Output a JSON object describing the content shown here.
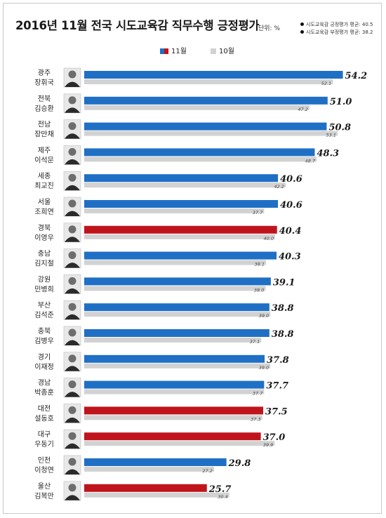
{
  "title": "2016년 11월 전국 시도교육감 직무수행 긍정평가",
  "unit": "단위: %",
  "averages": [
    "시도교육감 긍정평가 평균: 40.5",
    "시도교육감 부정평가 평균: 38.2"
  ],
  "legend": {
    "nov": "11월",
    "oct": "10월"
  },
  "colors": {
    "nov_blue": "#1f6fc5",
    "nov_red": "#c0141c",
    "oct_gray": "#d2d2d2"
  },
  "chart_data": {
    "type": "bar",
    "orientation": "horizontal",
    "title": "2016년 11월 전국 시도교육감 직무수행 긍정평가",
    "unit": "%",
    "categories": [
      {
        "region": "광주",
        "name": "장휘국"
      },
      {
        "region": "전북",
        "name": "김승환"
      },
      {
        "region": "전남",
        "name": "장만채"
      },
      {
        "region": "제주",
        "name": "이석문"
      },
      {
        "region": "세종",
        "name": "최교진"
      },
      {
        "region": "서울",
        "name": "조희연"
      },
      {
        "region": "경북",
        "name": "이영우"
      },
      {
        "region": "충남",
        "name": "김지철"
      },
      {
        "region": "강원",
        "name": "민병희"
      },
      {
        "region": "부산",
        "name": "김석준"
      },
      {
        "region": "충북",
        "name": "김병우"
      },
      {
        "region": "경기",
        "name": "이재정"
      },
      {
        "region": "경남",
        "name": "박종훈"
      },
      {
        "region": "대전",
        "name": "설동호"
      },
      {
        "region": "대구",
        "name": "우동기"
      },
      {
        "region": "인천",
        "name": "이청연"
      },
      {
        "region": "울산",
        "name": "김복만"
      }
    ],
    "series": [
      {
        "name": "11월",
        "values": [
          54.2,
          51.0,
          50.8,
          48.3,
          40.6,
          40.6,
          40.4,
          40.3,
          39.1,
          38.8,
          38.8,
          37.8,
          37.7,
          37.5,
          37.0,
          29.8,
          25.7
        ],
        "labels": [
          "54.2",
          "51.0",
          "50.8",
          "48.3",
          "40.6",
          "40.6",
          "40.4",
          "40.3",
          "39.1",
          "38.8",
          "38.8",
          "37.8",
          "37.7",
          "37.5",
          "37.0",
          "29.8",
          "25.7"
        ],
        "colors": [
          "blue",
          "blue",
          "blue",
          "blue",
          "blue",
          "blue",
          "red",
          "blue",
          "blue",
          "blue",
          "blue",
          "blue",
          "blue",
          "red",
          "red",
          "blue",
          "red"
        ]
      },
      {
        "name": "10월",
        "values": [
          52.1,
          47.2,
          53.1,
          48.7,
          42.2,
          37.7,
          40.0,
          38.1,
          38.0,
          39.0,
          37.1,
          39.0,
          37.7,
          37.3,
          39.9,
          27.2,
          30.4
        ],
        "labels": [
          "52.1",
          "47.2",
          "53.1",
          "48.7",
          "42.2",
          "37.7",
          "40.0",
          "38.1",
          "38.0",
          "39.0",
          "37.1",
          "39.0",
          "37.7",
          "37.3",
          "39.9",
          "27.2",
          "30.4"
        ]
      }
    ],
    "legend_position": "top-center",
    "grid": false
  }
}
